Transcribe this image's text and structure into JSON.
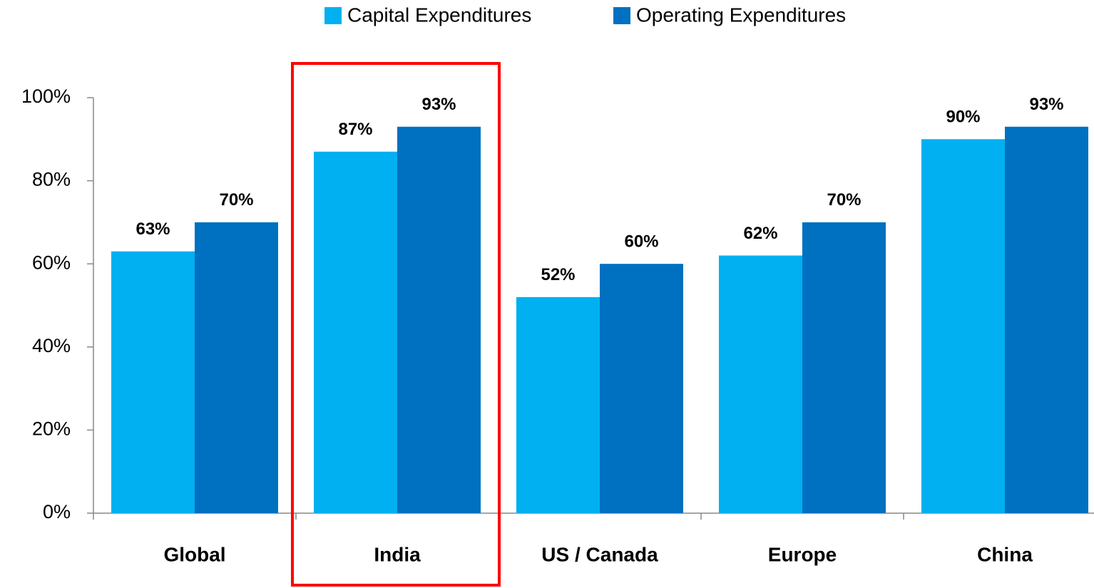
{
  "chart_data": {
    "type": "bar",
    "categories": [
      "Global",
      "India",
      "US / Canada",
      "Europe",
      "China"
    ],
    "series": [
      {
        "name": "Capital Expenditures",
        "color": "#00b0f0",
        "values": [
          63,
          87,
          52,
          62,
          90
        ],
        "value_labels": [
          "63%",
          "87%",
          "52%",
          "62%",
          "90%"
        ]
      },
      {
        "name": "Operating Expenditures",
        "color": "#0070c0",
        "values": [
          70,
          93,
          60,
          70,
          93
        ],
        "value_labels": [
          "70%",
          "93%",
          "60%",
          "70%",
          "93%"
        ]
      }
    ],
    "ylim": [
      0,
      100
    ],
    "yticks": [
      {
        "value": 0,
        "label": "0%"
      },
      {
        "value": 20,
        "label": "20%"
      },
      {
        "value": 40,
        "label": "40%"
      },
      {
        "value": 60,
        "label": "60%"
      },
      {
        "value": 80,
        "label": "80%"
      },
      {
        "value": 100,
        "label": "100%"
      }
    ],
    "grid": false,
    "legend": "top"
  }
}
